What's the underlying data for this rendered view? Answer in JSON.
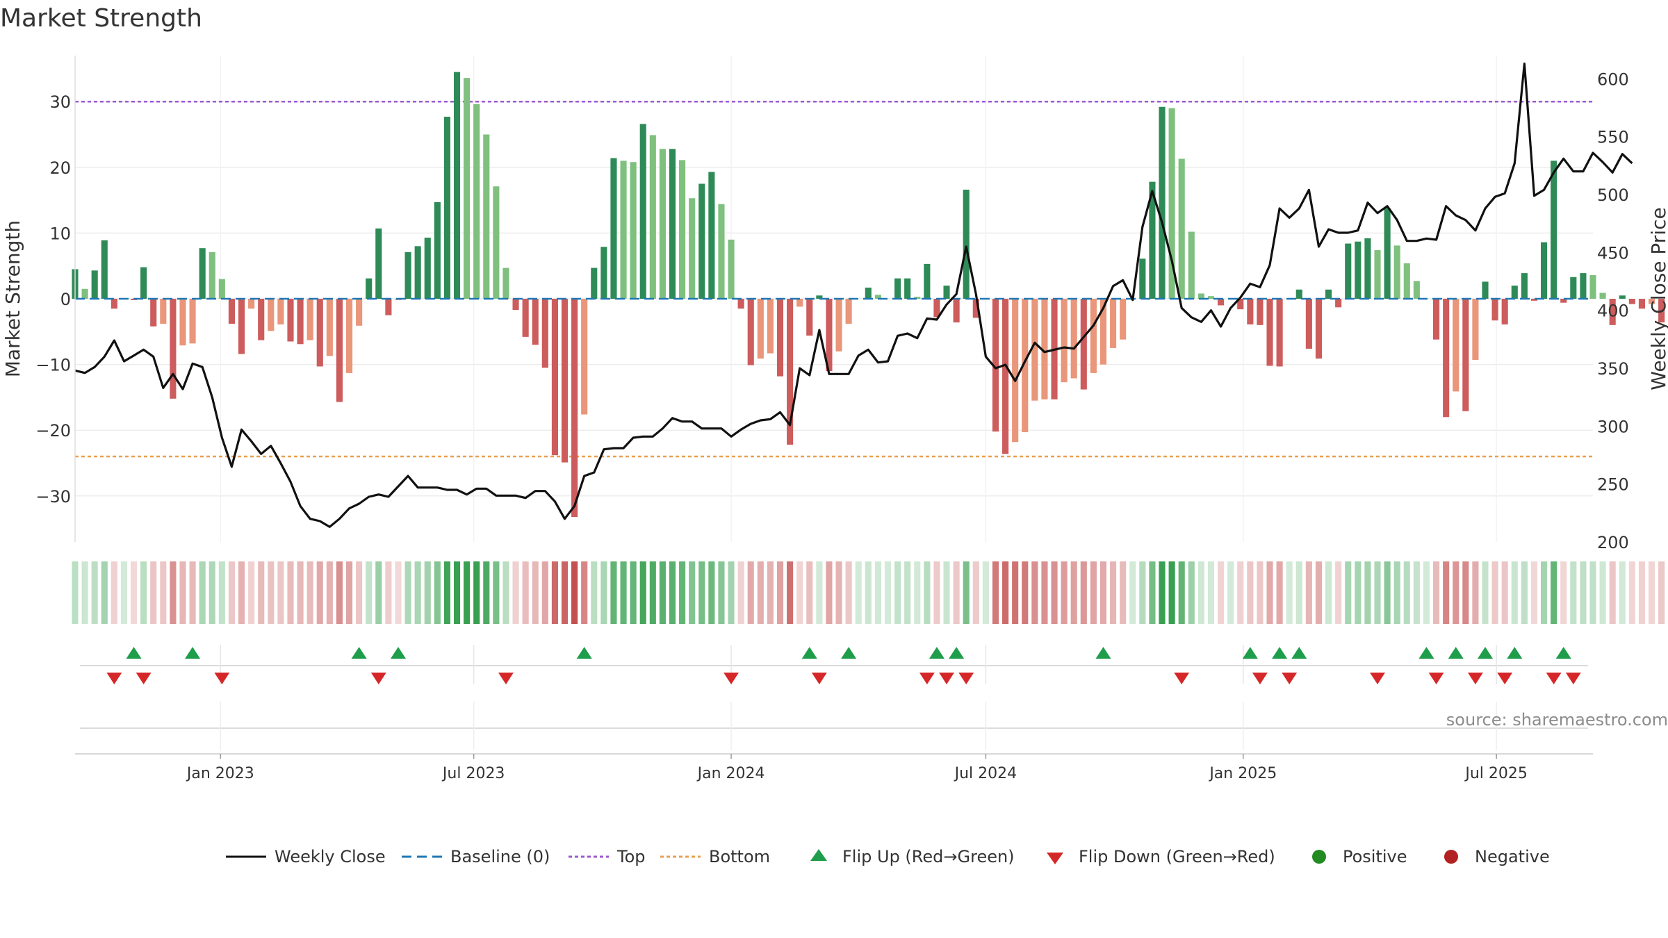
{
  "title": "Market Strength",
  "source": "source: sharemaestro.com",
  "colors": {
    "strong_green": "#2e8b57",
    "light_green": "#7fc07f",
    "strong_red": "#cd5c5c",
    "light_red": "#e9967a",
    "line": "#111111",
    "baseline": "#1f77b4",
    "top": "#9b59d0",
    "bottom": "#e8a050",
    "flip_up": "#1e9e4a",
    "flip_down": "#d62728",
    "positive": "#228b22",
    "negative": "#b22222"
  },
  "chart_data": {
    "type": "bar",
    "title": "Market Strength",
    "ylabel_left": "Market Strength",
    "ylabel_right": "Weekly Close Price",
    "ylim_left": [
      -37,
      37
    ],
    "ylim_right": [
      200,
      620
    ],
    "yticks_left": [
      30,
      20,
      10,
      0,
      -10,
      -20,
      -30
    ],
    "ytick_labels_left": [
      "30",
      "20",
      "10",
      "0",
      "−10",
      "−20",
      "−30"
    ],
    "yticks_right": [
      600,
      550,
      500,
      450,
      400,
      350,
      300,
      250,
      200
    ],
    "ytick_labels_right": [
      "600",
      "550",
      "500",
      "450",
      "400",
      "350",
      "300",
      "250",
      "200"
    ],
    "x_range": [
      "2022-09-19",
      "2025-09-08"
    ],
    "x_ticks": [
      {
        "label": "Jan 2023",
        "date": "2023-01-01"
      },
      {
        "label": "Jul 2023",
        "date": "2023-07-01"
      },
      {
        "label": "Jan 2024",
        "date": "2024-01-01"
      },
      {
        "label": "Jul 2024",
        "date": "2024-07-01"
      },
      {
        "label": "Jan 2025",
        "date": "2025-01-01"
      },
      {
        "label": "Jul 2025",
        "date": "2025-07-01"
      }
    ],
    "start_week": "2022-09-19",
    "top_threshold": 30,
    "bottom_threshold": -24,
    "series": [
      {
        "name": "Market Strength",
        "values": [
          4.5,
          1.5,
          4.3,
          8.9,
          -1.5,
          0,
          -0.2,
          4.8,
          -4.2,
          -3.8,
          -15.2,
          -7.1,
          -6.8,
          7.7,
          7.1,
          3,
          -3.8,
          -8.4,
          -1.5,
          -6.3,
          -4.9,
          -3.9,
          -6.5,
          -6.9,
          -6.3,
          -10.3,
          -8.7,
          -15.7,
          -11.3,
          -4.1,
          3.1,
          10.7,
          -2.5,
          -0.2,
          7.1,
          8,
          9.3,
          14.7,
          27.7,
          34.5,
          33.6,
          29.6,
          25,
          17.1,
          4.7,
          -1.7,
          -5.8,
          -7,
          -10.5,
          -23.8,
          -24.9,
          -33.2,
          -17.6,
          4.7,
          7.9,
          21.4,
          21,
          20.8,
          26.6,
          24.9,
          22.8,
          22.8,
          21.1,
          15.3,
          17.5,
          19.3,
          14.4,
          9,
          -1.5,
          -10.1,
          -9.1,
          -8.3,
          -11.8,
          -22.2,
          -1.2,
          -5.6,
          0.5,
          -11,
          -8,
          -3.8,
          0,
          1.7,
          0.6,
          0,
          3.1,
          3.1,
          0.3,
          5.3,
          -2.8,
          2,
          -3.6,
          16.6,
          -2.9,
          0,
          -20.2,
          -23.6,
          -21.8,
          -20.3,
          -15.5,
          -15.3,
          -15.3,
          -12.7,
          -12.1,
          -13.8,
          -11.3,
          -10,
          -7.5,
          -6.2,
          0,
          6.1,
          17.8,
          29.2,
          29,
          21.3,
          10.2,
          0.8,
          0.4,
          -1,
          0,
          -1.6,
          -3.9,
          -4,
          -10.2,
          -10.3,
          0,
          1.4,
          -7.6,
          -9.1,
          1.4,
          -1.3,
          8.4,
          8.7,
          9.2,
          7.4,
          13.8,
          8.1,
          5.4,
          2.7,
          0,
          -6.2,
          -18,
          -14.1,
          -17.1,
          -9.3,
          2.6,
          -3.3,
          -3.9,
          2,
          3.9,
          -0.3,
          8.6,
          21,
          -0.6,
          3.3,
          3.9,
          3.6,
          0.9,
          -4,
          0.5,
          -0.8,
          -1.5,
          -0.8,
          -3.6
        ]
      },
      {
        "name": "Weekly Close",
        "values": [
          348,
          346,
          351,
          360,
          374,
          356,
          361,
          366,
          360,
          333,
          345,
          332,
          354,
          351,
          325,
          290,
          265,
          297,
          287,
          276,
          283,
          268,
          252,
          231,
          220,
          218,
          213,
          220,
          229,
          233,
          239,
          241,
          239,
          248,
          257,
          247,
          247,
          247,
          245,
          245,
          241,
          246,
          246,
          240,
          240,
          240,
          238,
          244,
          244,
          235,
          220,
          231,
          257,
          260,
          280,
          281,
          281,
          290,
          291,
          291,
          298,
          307,
          304,
          304,
          298,
          298,
          298,
          291,
          297,
          302,
          305,
          306,
          312,
          301,
          350,
          344,
          383,
          345,
          345,
          345,
          361,
          366,
          355,
          356,
          378,
          380,
          376,
          393,
          392,
          405,
          414,
          455,
          414,
          360,
          350,
          353,
          339,
          356,
          372,
          364,
          366,
          368,
          367,
          377,
          387,
          402,
          421,
          426,
          409,
          472,
          503,
          476,
          443,
          402,
          394,
          390,
          400,
          386,
          402,
          411,
          423,
          420,
          439,
          488,
          480,
          488,
          504,
          455,
          470,
          467,
          467,
          469,
          493,
          484,
          490,
          478,
          460,
          460,
          462,
          461,
          490,
          482,
          478,
          469,
          488,
          498,
          501,
          527,
          613,
          499,
          504,
          519,
          531,
          520,
          520,
          536,
          528,
          519,
          535,
          527
        ]
      },
      {
        "name": "Flip Up (Red→Green)",
        "weeks": [
          6,
          12,
          29,
          33,
          52,
          75,
          79,
          88,
          90,
          105,
          120,
          123,
          125,
          138,
          141,
          144,
          147,
          152
        ]
      },
      {
        "name": "Flip Down (Green→Red)",
        "weeks": [
          4,
          7,
          15,
          31,
          44,
          67,
          76,
          87,
          89,
          91,
          113,
          121,
          124,
          133,
          139,
          143,
          146,
          151,
          153
        ]
      }
    ]
  },
  "legend": {
    "items": [
      {
        "key": "close",
        "label": "Weekly Close"
      },
      {
        "key": "baseline",
        "label": "Baseline (0)"
      },
      {
        "key": "top",
        "label": "Top"
      },
      {
        "key": "bottom",
        "label": "Bottom"
      },
      {
        "key": "flip_up",
        "label": "Flip Up (Red→Green)"
      },
      {
        "key": "flip_down",
        "label": "Flip Down (Green→Red)"
      },
      {
        "key": "positive",
        "label": "Positive"
      },
      {
        "key": "negative",
        "label": "Negative"
      }
    ]
  }
}
